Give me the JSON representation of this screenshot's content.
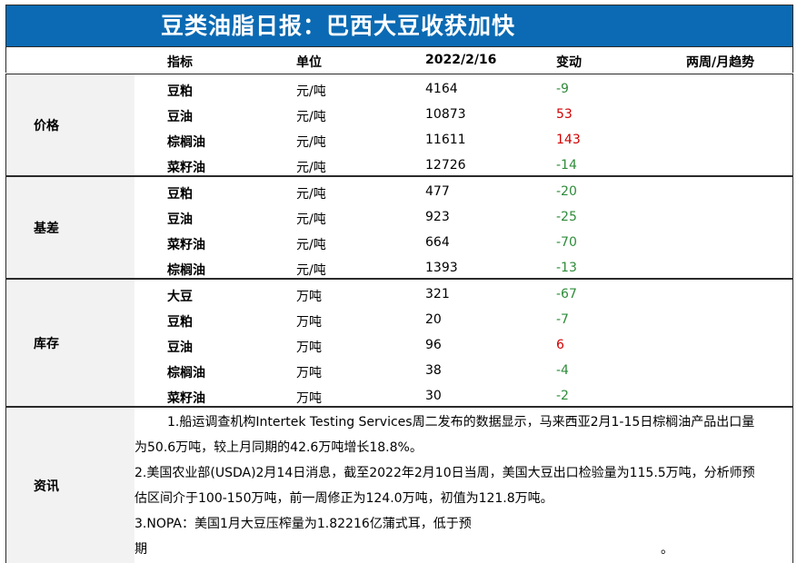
{
  "title": "豆类油脂日报：巴西大豆收获加快",
  "headers": {
    "indicator": "指标",
    "unit": "单位",
    "date": "2022/2/16",
    "change": "变动",
    "trend": "两周/月趋势"
  },
  "sections": {
    "price": {
      "label": "价格",
      "rows": [
        {
          "name": "豆粕",
          "unit": "元/吨",
          "value": "4164",
          "change": "-9"
        },
        {
          "name": "豆油",
          "unit": "元/吨",
          "value": "10873",
          "change": "53"
        },
        {
          "name": "棕榈油",
          "unit": "元/吨",
          "value": "11611",
          "change": "143"
        },
        {
          "name": "菜籽油",
          "unit": "元/吨",
          "value": "12726",
          "change": "-14"
        }
      ]
    },
    "basis": {
      "label": "基差",
      "rows": [
        {
          "name": "豆粕",
          "unit": "元/吨",
          "value": "477",
          "change": "-20"
        },
        {
          "name": "豆油",
          "unit": "元/吨",
          "value": "923",
          "change": "-25"
        },
        {
          "name": "菜籽油",
          "unit": "元/吨",
          "value": "664",
          "change": "-70"
        },
        {
          "name": "棕榈油",
          "unit": "元/吨",
          "value": "1393",
          "change": "-13"
        }
      ]
    },
    "inventory": {
      "label": "库存",
      "rows": [
        {
          "name": "大豆",
          "unit": "万吨",
          "value": "321",
          "change": "-67"
        },
        {
          "name": "豆粕",
          "unit": "万吨",
          "value": "20",
          "change": "-7"
        },
        {
          "name": "豆油",
          "unit": "万吨",
          "value": "96",
          "change": "6"
        },
        {
          "name": "棕榈油",
          "unit": "万吨",
          "value": "38",
          "change": "-4"
        },
        {
          "name": "菜籽油",
          "unit": "万吨",
          "value": "30",
          "change": "-2"
        }
      ]
    },
    "news": {
      "label": "资讯",
      "lines": [
        "1.船运调查机构Intertek Testing Services周二发布的数据显示，马来西亚2月1-15日棕榈油产品出口量",
        "为50.6万吨，较上月同期的42.6万吨增长18.8%。",
        "2.美国农业部(USDA)2月14日消息，截至2022年2月10日当周，美国大豆出口检验量为115.5万吨，分析师预",
        "估区间介于100-150万吨，前一周修正为124.0万吨，初值为121.8万吨。",
        "3.NOPA：美国1月大豆压榨量为1.82216亿蒲式耳，低于预",
        "期",
        "。"
      ]
    }
  },
  "colors": {
    "title_bg": "#0b6ab3",
    "positive": "#d00000",
    "negative": "#2e8b3a",
    "label_bg": "#f2f2f2"
  }
}
